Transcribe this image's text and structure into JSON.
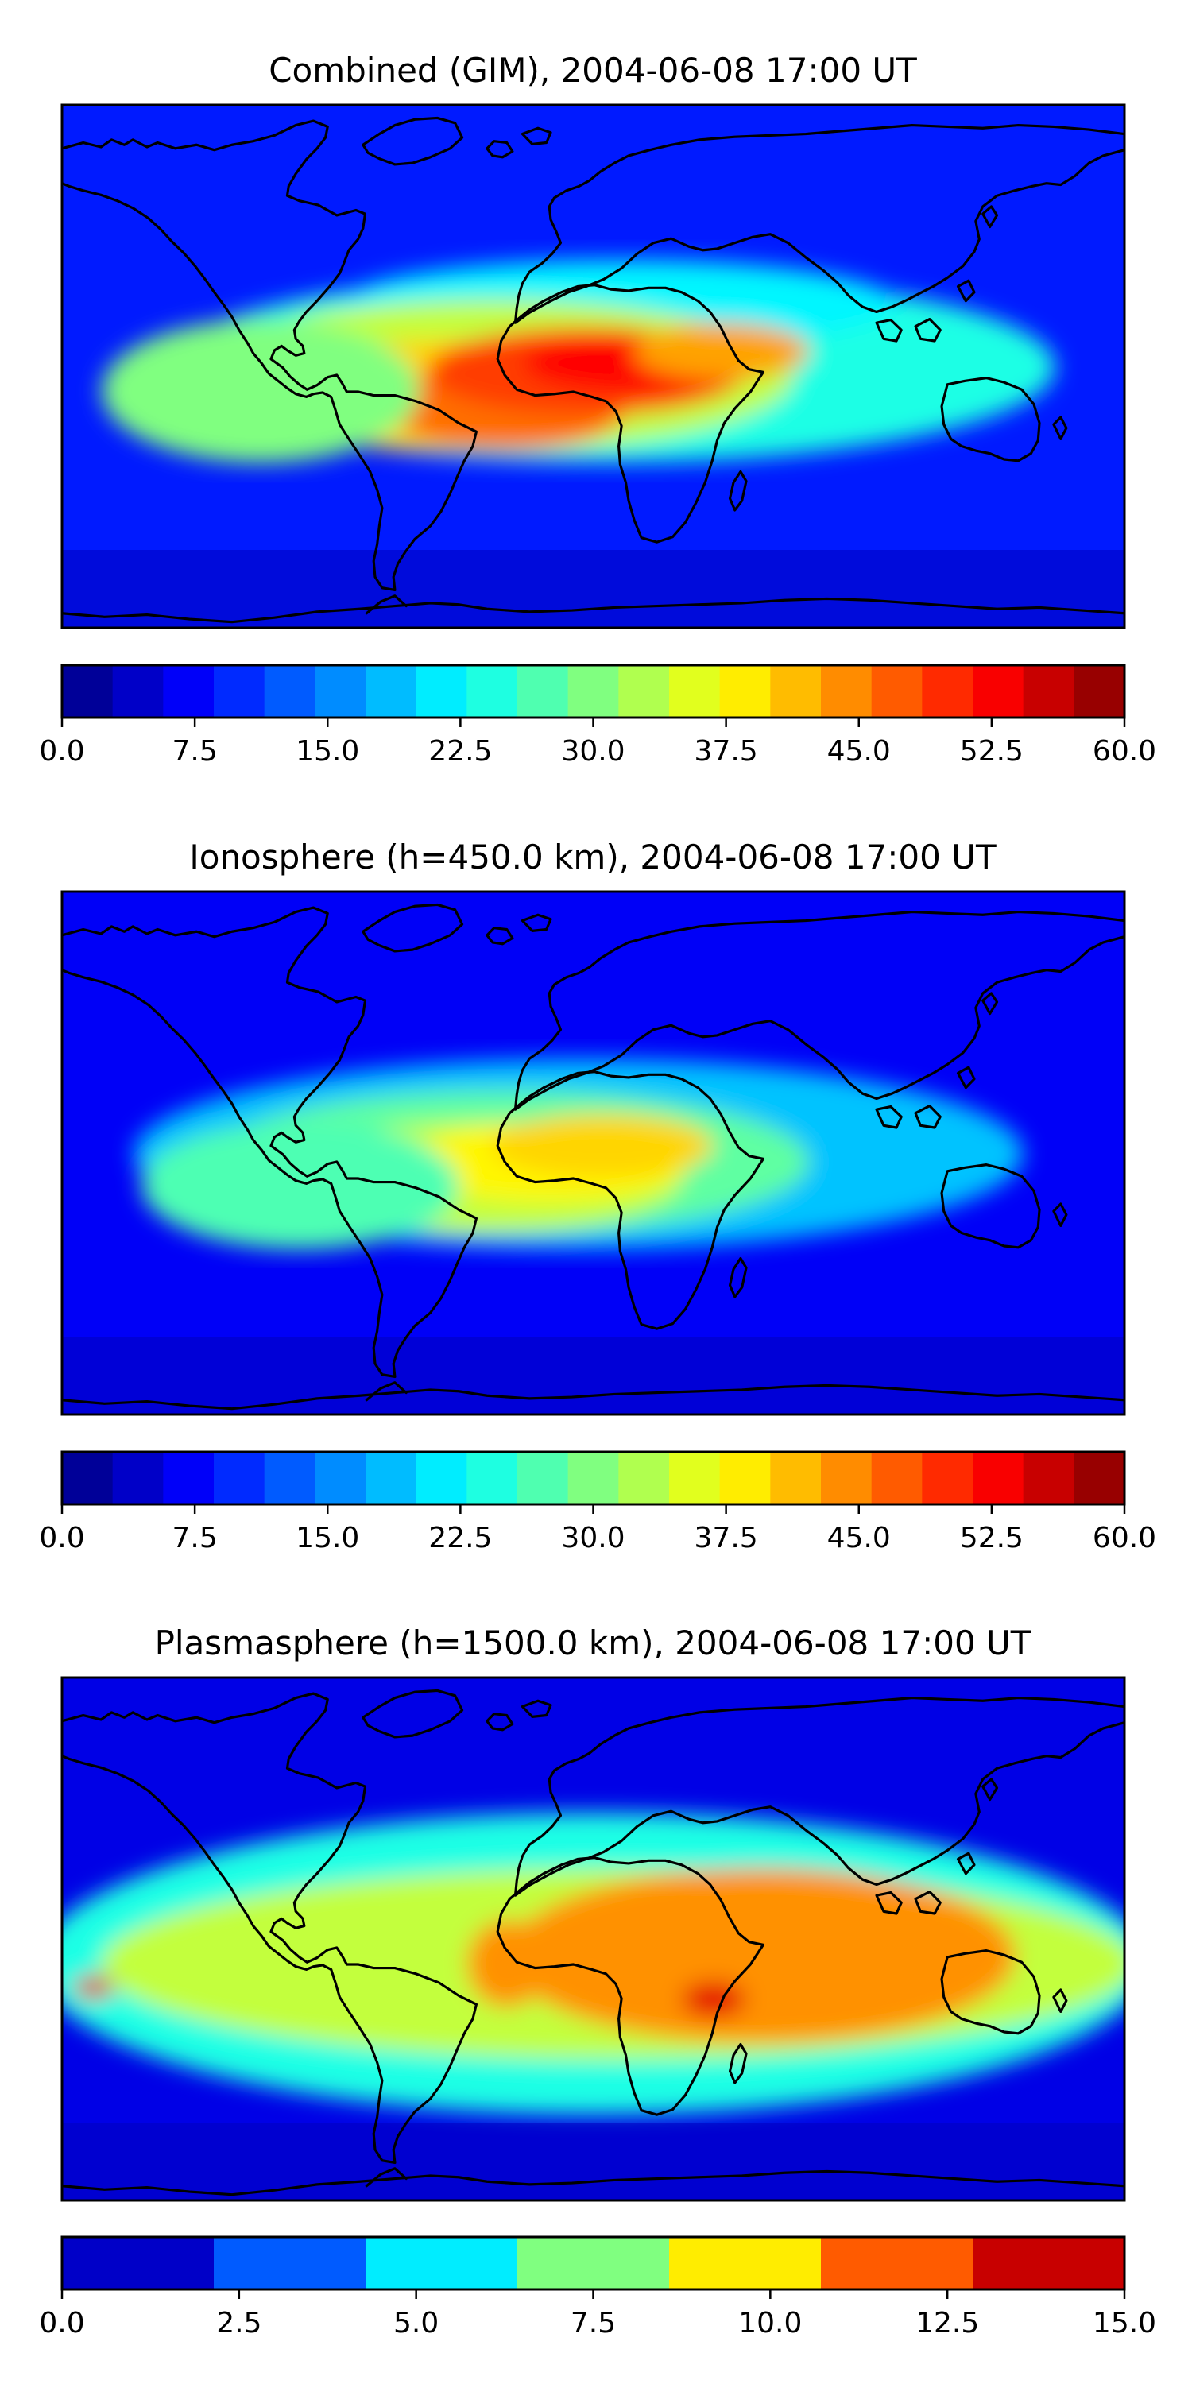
{
  "chart_data": [
    {
      "type": "heatmap",
      "title": "Combined (GIM), 2004-06-08 17:00 UT",
      "map": "world coastlines, equirectangular",
      "colormap": "jet",
      "colorbar": {
        "range": [
          0,
          60
        ],
        "levels": 21,
        "ticks": [
          0,
          7.5,
          15,
          22.5,
          30,
          37.5,
          45,
          52.5,
          60
        ],
        "tick_labels": [
          "0.0",
          "7.5",
          "15.0",
          "22.5",
          "30.0",
          "37.5",
          "45.0",
          "52.5",
          "60.0"
        ]
      },
      "maxima": [
        {
          "region": "tropical Atlantic / western Africa",
          "value": 52.5
        },
        {
          "region": "northern South America",
          "value": 47
        }
      ],
      "background_value": 9
    },
    {
      "type": "heatmap",
      "title": "Ionosphere  (h=450.0 km), 2004-06-08 17:00 UT",
      "map": "world coastlines, equirectangular",
      "colormap": "jet",
      "colorbar": {
        "range": [
          0,
          60
        ],
        "levels": 21,
        "ticks": [
          0,
          7.5,
          15,
          22.5,
          30,
          37.5,
          45,
          52.5,
          60
        ],
        "tick_labels": [
          "0.0",
          "7.5",
          "15.0",
          "22.5",
          "30.0",
          "37.5",
          "45.0",
          "52.5",
          "60.0"
        ]
      },
      "maxima": [
        {
          "region": "tropical Atlantic / western Africa",
          "value": 40
        }
      ],
      "background_value": 7
    },
    {
      "type": "heatmap",
      "title": "Plasmasphere (h=1500.0 km), 2004-06-08 17:00 UT",
      "map": "world coastlines, equirectangular",
      "colormap": "jet",
      "colorbar": {
        "range": [
          0,
          15
        ],
        "levels": 7,
        "ticks": [
          0,
          2.5,
          5,
          7.5,
          10,
          12.5,
          15
        ],
        "tick_labels": [
          "0.0",
          "2.5",
          "5.0",
          "7.5",
          "10.0",
          "12.5",
          "15.0"
        ]
      },
      "maxima": [
        {
          "region": "southern Africa / Mozambique",
          "value": 13.5
        },
        {
          "region": "Indian Ocean",
          "value": 11
        }
      ],
      "background_value": 1.5
    }
  ]
}
